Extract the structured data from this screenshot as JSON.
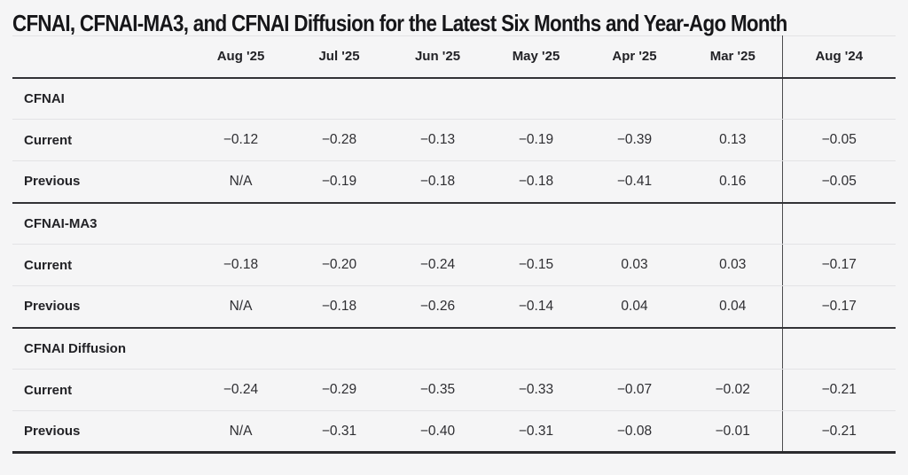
{
  "title": "CFNAI, CFNAI-MA3, and CFNAI Diffusion for the Latest Six Months and Year-Ago Month",
  "table": {
    "columns": [
      "Aug '25",
      "Jul '25",
      "Jun '25",
      "May '25",
      "Apr '25",
      "Mar '25",
      "Aug '24"
    ],
    "sections": [
      {
        "name": "CFNAI",
        "rows": [
          {
            "label": "Current",
            "values": [
              "−0.12",
              "−0.28",
              "−0.13",
              "−0.19",
              "−0.39",
              "0.13",
              "−0.05"
            ]
          },
          {
            "label": "Previous",
            "values": [
              "N/A",
              "−0.19",
              "−0.18",
              "−0.18",
              "−0.41",
              "0.16",
              "−0.05"
            ]
          }
        ]
      },
      {
        "name": "CFNAI-MA3",
        "rows": [
          {
            "label": "Current",
            "values": [
              "−0.18",
              "−0.20",
              "−0.24",
              "−0.15",
              "0.03",
              "0.03",
              "−0.17"
            ]
          },
          {
            "label": "Previous",
            "values": [
              "N/A",
              "−0.18",
              "−0.26",
              "−0.14",
              "0.04",
              "0.04",
              "−0.17"
            ]
          }
        ]
      },
      {
        "name": "CFNAI Diffusion",
        "rows": [
          {
            "label": "Current",
            "values": [
              "−0.24",
              "−0.29",
              "−0.35",
              "−0.33",
              "−0.07",
              "−0.02",
              "−0.21"
            ]
          },
          {
            "label": "Previous",
            "values": [
              "N/A",
              "−0.31",
              "−0.40",
              "−0.31",
              "−0.08",
              "−0.01",
              "−0.21"
            ]
          }
        ]
      }
    ]
  },
  "chart_data": {
    "type": "table",
    "title": "CFNAI, CFNAI-MA3, and CFNAI Diffusion for the Latest Six Months and Year-Ago Month",
    "columns": [
      "Aug '25",
      "Jul '25",
      "Jun '25",
      "May '25",
      "Apr '25",
      "Mar '25",
      "Aug '24"
    ],
    "rows": [
      {
        "section": "CFNAI",
        "label": "Current",
        "values": [
          -0.12,
          -0.28,
          -0.13,
          -0.19,
          -0.39,
          0.13,
          -0.05
        ]
      },
      {
        "section": "CFNAI",
        "label": "Previous",
        "values": [
          null,
          -0.19,
          -0.18,
          -0.18,
          -0.41,
          0.16,
          -0.05
        ]
      },
      {
        "section": "CFNAI-MA3",
        "label": "Current",
        "values": [
          -0.18,
          -0.2,
          -0.24,
          -0.15,
          0.03,
          0.03,
          -0.17
        ]
      },
      {
        "section": "CFNAI-MA3",
        "label": "Previous",
        "values": [
          null,
          -0.18,
          -0.26,
          -0.14,
          0.04,
          0.04,
          -0.17
        ]
      },
      {
        "section": "CFNAI Diffusion",
        "label": "Current",
        "values": [
          -0.24,
          -0.29,
          -0.35,
          -0.33,
          -0.07,
          -0.02,
          -0.21
        ]
      },
      {
        "section": "CFNAI Diffusion",
        "label": "Previous",
        "values": [
          null,
          -0.31,
          -0.4,
          -0.31,
          -0.08,
          -0.01,
          -0.21
        ]
      }
    ],
    "na_display": "N/A",
    "layout_hints": {
      "year_ago_column_separated": true,
      "section_rows_bold": true,
      "values_centered": true
    }
  },
  "colors": {
    "background": "#f5f5f6",
    "title_text": "#161619",
    "body_text": "#2e2e32",
    "rule_dark": "#323236",
    "rule_light": "#e3e3e5",
    "column_divider": "#4b4b4e"
  }
}
